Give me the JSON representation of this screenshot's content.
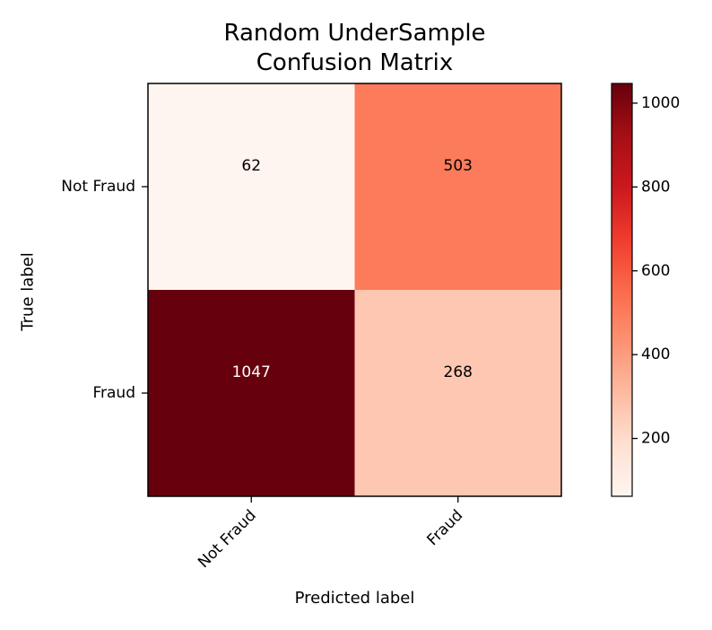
{
  "chart_data": {
    "type": "heatmap",
    "title": [
      "Random UnderSample",
      "Confusion Matrix"
    ],
    "xlabel": "Predicted label",
    "ylabel": "True label",
    "x_categories": [
      "Not Fraud",
      "Fraud"
    ],
    "y_categories": [
      "Not Fraud",
      "Fraud"
    ],
    "values": [
      [
        62,
        503
      ],
      [
        1047,
        268
      ]
    ],
    "colormap": "Reds",
    "vmin": 62,
    "vmax": 1047,
    "colorbar_ticks": [
      200,
      400,
      600,
      800,
      1000
    ],
    "threshold_text_white": 554.5,
    "colors": {
      "colormap_stops": [
        "#fff5f0",
        "#fee0d2",
        "#fcbba1",
        "#fc9272",
        "#fb6a4a",
        "#ef3b2c",
        "#cb181d",
        "#a50f15",
        "#67000d"
      ],
      "frame": "#000000",
      "text_dark": "#000000",
      "text_light": "#ffffff"
    }
  }
}
